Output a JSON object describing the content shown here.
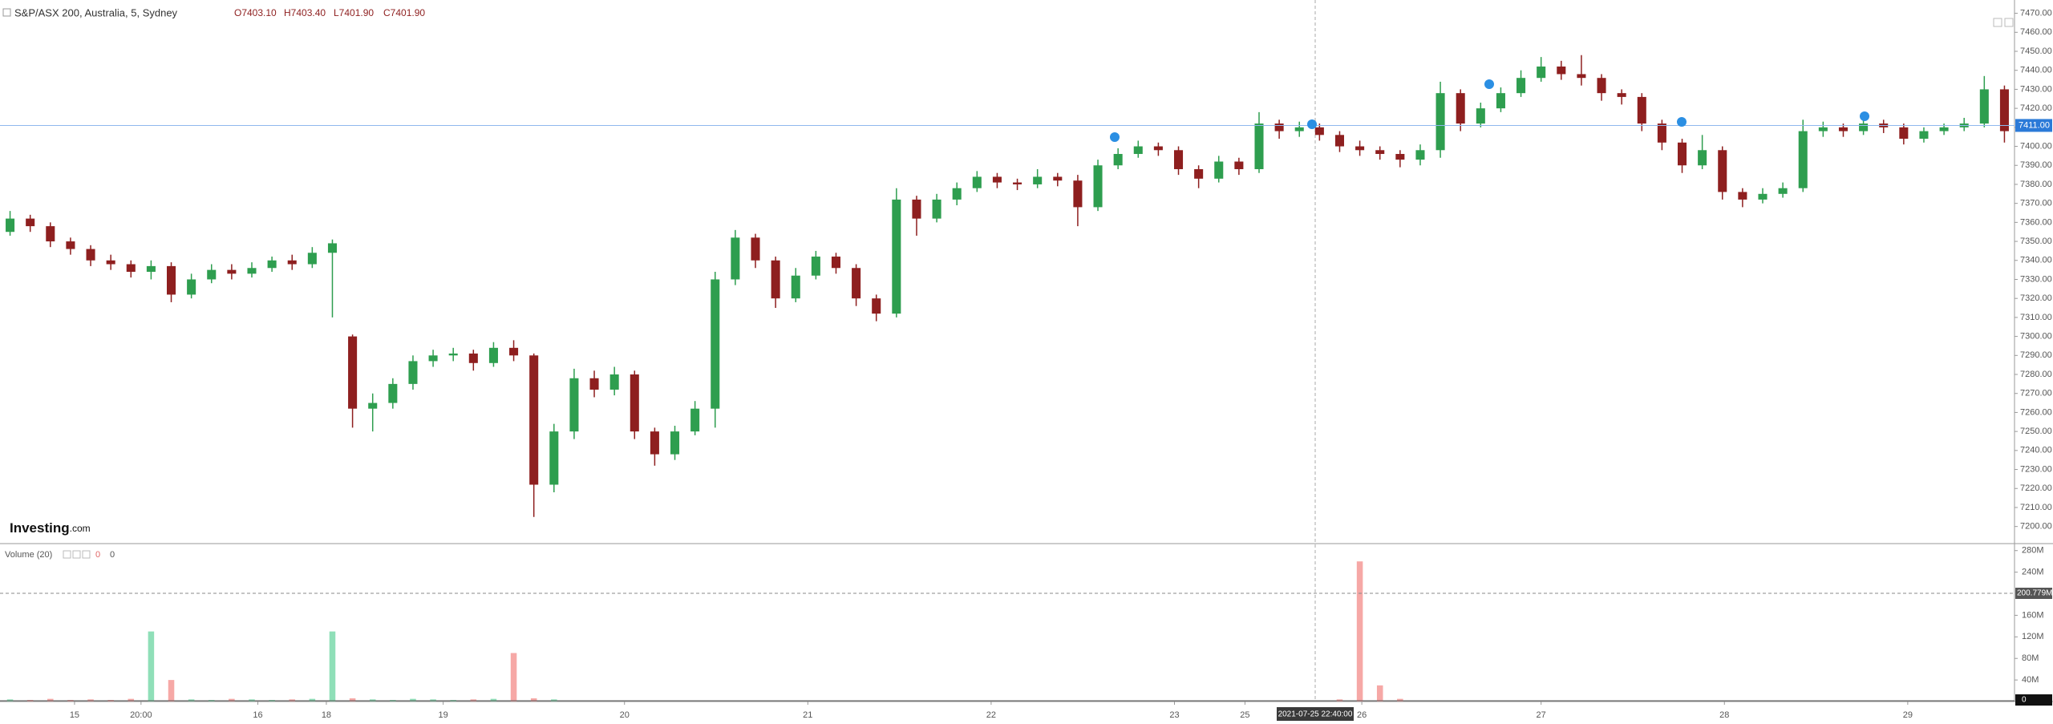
{
  "chart_data": [
    {
      "type": "candlestick",
      "title": "S&P/ASX 200, Australia, 5, Sydney",
      "legend_values": [
        "O7403.10",
        "H7403.40",
        "L7401.90",
        "C7401.90"
      ],
      "colors": {
        "up": "#2e9e4f",
        "down": "#8e1f1f"
      },
      "xlim": [
        0,
        100
      ],
      "ylim": [
        7191,
        7477
      ],
      "yticks": [
        {
          "value": 7200,
          "label": "7200.00"
        },
        {
          "value": 7210,
          "label": "7210.00"
        },
        {
          "value": 7220,
          "label": "7220.00"
        },
        {
          "value": 7230,
          "label": "7230.00"
        },
        {
          "value": 7240,
          "label": "7240.00"
        },
        {
          "value": 7250,
          "label": "7250.00"
        },
        {
          "value": 7260,
          "label": "7260.00"
        },
        {
          "value": 7270,
          "label": "7270.00"
        },
        {
          "value": 7280,
          "label": "7280.00"
        },
        {
          "value": 7290,
          "label": "7290.00"
        },
        {
          "value": 7300,
          "label": "7300.00"
        },
        {
          "value": 7310,
          "label": "7310.00"
        },
        {
          "value": 7320,
          "label": "7320.00"
        },
        {
          "value": 7330,
          "label": "7330.00"
        },
        {
          "value": 7340,
          "label": "7340.00"
        },
        {
          "value": 7350,
          "label": "7350.00"
        },
        {
          "value": 7360,
          "label": "7360.00"
        },
        {
          "value": 7370,
          "label": "7370.00"
        },
        {
          "value": 7380,
          "label": "7380.00"
        },
        {
          "value": 7390,
          "label": "7390.00"
        },
        {
          "value": 7400,
          "label": "7400.00"
        },
        {
          "value": 7410,
          "label": "7410.00"
        },
        {
          "value": 7420,
          "label": "7420.00"
        },
        {
          "value": 7430,
          "label": "7430.00"
        },
        {
          "value": 7440,
          "label": "7440.00"
        },
        {
          "value": 7450,
          "label": "7450.00"
        },
        {
          "value": 7460,
          "label": "7460.00"
        },
        {
          "value": 7470,
          "label": "7470.00"
        }
      ],
      "price_line": {
        "value": 7411,
        "label": "7411.00"
      },
      "open": [
        7355,
        7362,
        7358,
        7350,
        7346,
        7340,
        7338,
        7334,
        7337,
        7322,
        7330,
        7335,
        7333,
        7336,
        7340,
        7338,
        7344,
        7300,
        7262,
        7265,
        7275,
        7287,
        7290,
        7291,
        7286,
        7294,
        7290,
        7222,
        7250,
        7278,
        7272,
        7280,
        7250,
        7238,
        7250,
        7262,
        7330,
        7352,
        7340,
        7320,
        7332,
        7342,
        7336,
        7320,
        7312,
        7372,
        7362,
        7372,
        7378,
        7384,
        7381,
        7380,
        7384,
        7382,
        7368,
        7390,
        7396,
        7400,
        7398,
        7388,
        7383,
        7392,
        7388,
        7412,
        7408,
        7410,
        7406,
        7400,
        7398,
        7396,
        7393,
        7398,
        7428,
        7412,
        7420,
        7428,
        7436,
        7442,
        7438,
        7436,
        7428,
        7426,
        7412,
        7402,
        7390,
        7398,
        7376,
        7372,
        7375,
        7378,
        7408,
        7410,
        7408,
        7412,
        7410,
        7404,
        7408,
        7410,
        7412,
        7430
      ],
      "high": [
        7366,
        7364,
        7360,
        7352,
        7348,
        7343,
        7340,
        7340,
        7339,
        7333,
        7338,
        7338,
        7339,
        7342,
        7343,
        7347,
        7351,
        7301,
        7270,
        7278,
        7290,
        7293,
        7294,
        7293,
        7297,
        7298,
        7291,
        7254,
        7283,
        7282,
        7284,
        7282,
        7252,
        7253,
        7266,
        7334,
        7356,
        7354,
        7342,
        7336,
        7345,
        7344,
        7338,
        7322,
        7378,
        7374,
        7375,
        7381,
        7387,
        7386,
        7383,
        7388,
        7386,
        7385,
        7393,
        7399,
        7403,
        7402,
        7400,
        7390,
        7395,
        7394,
        7418,
        7414,
        7413,
        7412,
        7408,
        7403,
        7400,
        7398,
        7401,
        7434,
        7430,
        7423,
        7431,
        7440,
        7447,
        7445,
        7448,
        7438,
        7430,
        7428,
        7414,
        7404,
        7406,
        7400,
        7378,
        7378,
        7381,
        7414,
        7413,
        7412,
        7415,
        7414,
        7412,
        7410,
        7412,
        7415,
        7437,
        7432
      ],
      "low": [
        7353,
        7355,
        7347,
        7343,
        7337,
        7335,
        7331,
        7330,
        7318,
        7320,
        7328,
        7330,
        7331,
        7334,
        7335,
        7336,
        7310,
        7252,
        7250,
        7262,
        7272,
        7284,
        7287,
        7282,
        7284,
        7287,
        7205,
        7218,
        7246,
        7268,
        7269,
        7246,
        7232,
        7235,
        7248,
        7252,
        7327,
        7336,
        7315,
        7318,
        7330,
        7333,
        7316,
        7308,
        7310,
        7353,
        7360,
        7369,
        7376,
        7378,
        7377,
        7378,
        7379,
        7358,
        7366,
        7388,
        7394,
        7395,
        7385,
        7378,
        7381,
        7385,
        7386,
        7404,
        7405,
        7403,
        7397,
        7395,
        7393,
        7389,
        7390,
        7394,
        7408,
        7410,
        7418,
        7426,
        7434,
        7435,
        7432,
        7424,
        7422,
        7408,
        7398,
        7386,
        7388,
        7372,
        7368,
        7370,
        7373,
        7376,
        7405,
        7405,
        7406,
        7407,
        7401,
        7402,
        7406,
        7408,
        7410,
        7402
      ],
      "close": [
        7362,
        7358,
        7350,
        7346,
        7340,
        7338,
        7334,
        7337,
        7322,
        7330,
        7335,
        7333,
        7336,
        7340,
        7338,
        7344,
        7349,
        7262,
        7265,
        7275,
        7287,
        7290,
        7291,
        7286,
        7294,
        7290,
        7222,
        7250,
        7278,
        7272,
        7280,
        7250,
        7238,
        7250,
        7262,
        7330,
        7352,
        7340,
        7320,
        7332,
        7342,
        7336,
        7320,
        7312,
        7372,
        7362,
        7372,
        7378,
        7384,
        7381,
        7380,
        7384,
        7382,
        7368,
        7390,
        7396,
        7400,
        7398,
        7388,
        7383,
        7392,
        7388,
        7412,
        7408,
        7410,
        7406,
        7400,
        7398,
        7396,
        7393,
        7398,
        7428,
        7412,
        7420,
        7428,
        7436,
        7442,
        7438,
        7436,
        7428,
        7426,
        7412,
        7402,
        7390,
        7398,
        7376,
        7372,
        7375,
        7378,
        7408,
        7410,
        7408,
        7412,
        7410,
        7404,
        7408,
        7410,
        7412,
        7430,
        7408
      ]
    },
    {
      "type": "bar",
      "title": "Volume (20)",
      "legend_values": [
        0
      ],
      "colors": {
        "up": "#8fdfb8",
        "down": "#f6a8a6"
      },
      "xlim": [
        0,
        100
      ],
      "ylim": [
        0,
        293
      ],
      "yticks": [
        {
          "value": 40,
          "label": "40M"
        },
        {
          "value": 80,
          "label": "80M"
        },
        {
          "value": 120,
          "label": "120M"
        },
        {
          "value": 160,
          "label": "160M"
        },
        {
          "value": 240,
          "label": "240M"
        },
        {
          "value": 280,
          "label": "280M"
        }
      ],
      "last_value": 0,
      "ref_line": {
        "value": 200.779,
        "label": "200.779M"
      },
      "values": [
        4,
        3,
        5,
        3,
        4,
        3,
        5,
        130,
        40,
        4,
        3,
        5,
        4,
        3,
        4,
        5,
        130,
        6,
        4,
        3,
        5,
        4,
        3,
        4,
        5,
        90,
        6,
        4,
        null,
        null,
        null,
        null,
        null,
        null,
        null,
        null,
        null,
        null,
        null,
        null,
        null,
        null,
        null,
        null,
        null,
        null,
        null,
        null,
        null,
        null,
        null,
        null,
        null,
        null,
        null,
        null,
        null,
        null,
        null,
        null,
        null,
        null,
        null,
        null,
        null,
        null,
        4,
        260,
        30,
        5,
        null,
        null,
        null,
        null,
        null,
        null,
        null,
        null,
        null,
        null,
        null,
        null,
        null,
        null,
        null,
        null,
        null,
        null,
        null,
        null,
        null,
        null,
        null,
        null,
        null,
        null,
        null,
        null,
        null,
        null
      ],
      "xticks": [
        {
          "value": 3.7,
          "label": "15"
        },
        {
          "value": 7.0,
          "label": "20:00"
        },
        {
          "value": 12.8,
          "label": "16"
        },
        {
          "value": 16.2,
          "label": "18"
        },
        {
          "value": 22.0,
          "label": "19"
        },
        {
          "value": 31.0,
          "label": "20"
        },
        {
          "value": 40.1,
          "label": "21"
        },
        {
          "value": 49.2,
          "label": "22"
        },
        {
          "value": 58.3,
          "label": "23"
        },
        {
          "value": 61.8,
          "label": "25"
        },
        {
          "value": 67.6,
          "label": "26"
        },
        {
          "value": 76.5,
          "label": "27"
        },
        {
          "value": 85.6,
          "label": "28"
        },
        {
          "value": 94.7,
          "label": "29"
        }
      ]
    }
  ],
  "crosshair_label": "2021-07-25 22:40:00",
  "logo": {
    "name": "Investing",
    "suffix": ".com"
  }
}
